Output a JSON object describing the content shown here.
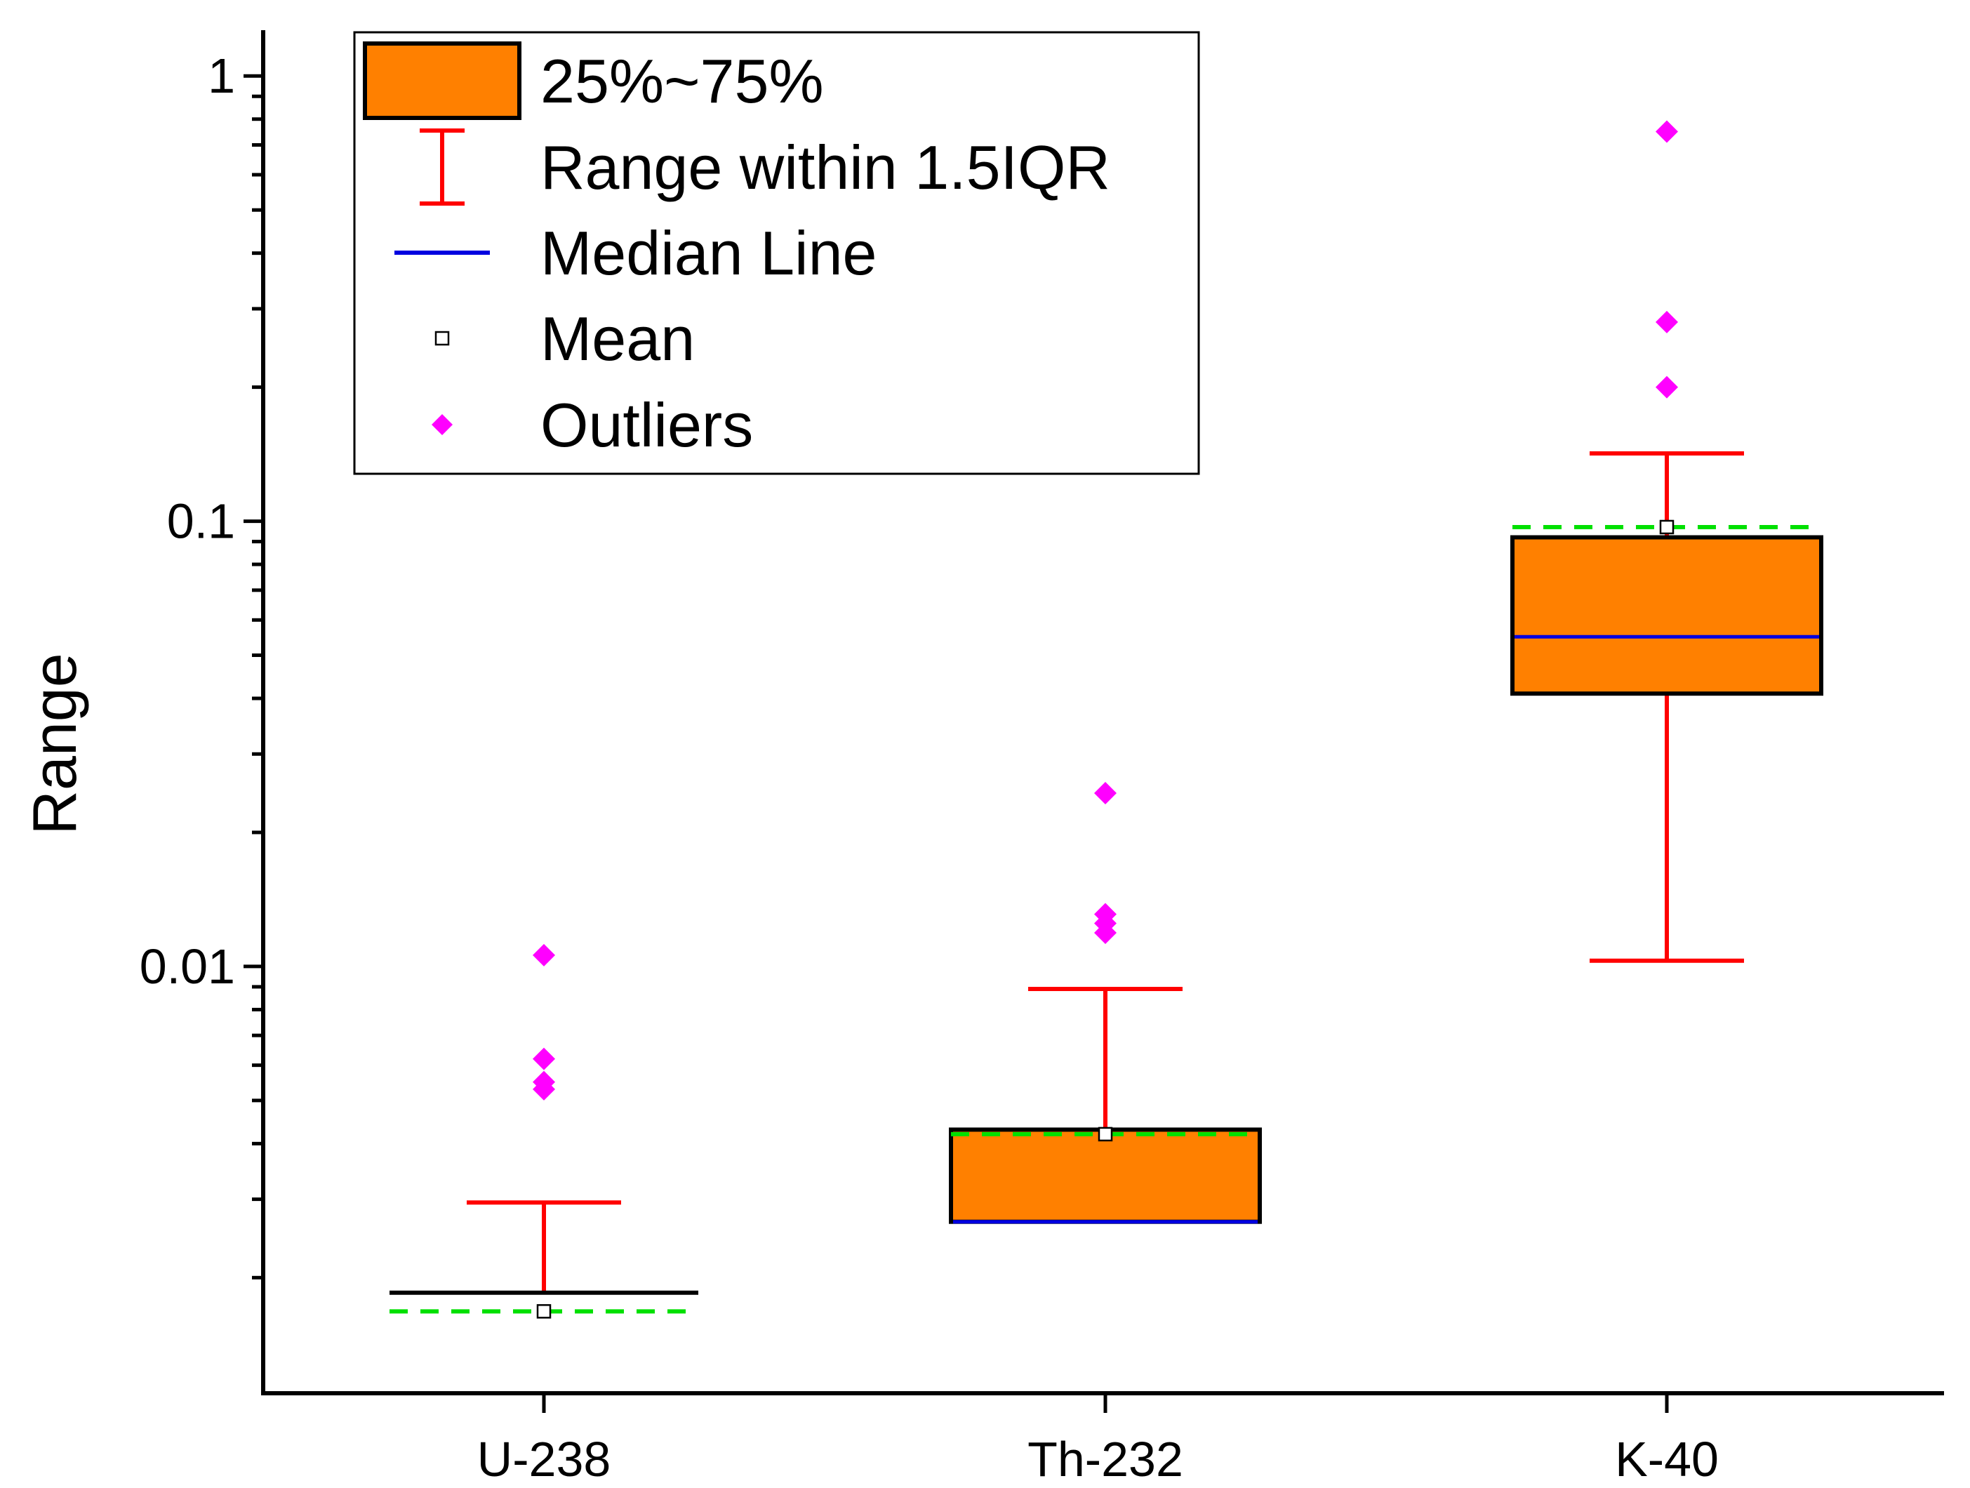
{
  "chart_data": {
    "type": "box",
    "title": "",
    "xlabel": "",
    "ylabel": "Range",
    "yscale": "log",
    "ylim": [
      0.0011,
      1.2
    ],
    "yticks": [
      {
        "value": 0.01,
        "label": "0.01"
      },
      {
        "value": 0.1,
        "label": "0.1"
      },
      {
        "value": 1,
        "label": "1"
      }
    ],
    "categories": [
      "U-238",
      "Th-232",
      "K-40"
    ],
    "boxes": [
      {
        "name": "U-238",
        "whisker_low": 0.00185,
        "q1": 0.00185,
        "median": 0.00185,
        "q3": 0.00185,
        "whisker_high": 0.00295,
        "mean": 0.00168,
        "reference": 0.00168,
        "outliers": [
          0.0106,
          0.0062,
          0.0055,
          0.0053
        ]
      },
      {
        "name": "Th-232",
        "whisker_low": 0.00267,
        "q1": 0.00267,
        "median": 0.00267,
        "q3": 0.0043,
        "whisker_high": 0.0089,
        "mean": 0.0042,
        "reference": 0.0042,
        "outliers": [
          0.0245,
          0.0131,
          0.0125,
          0.0119
        ]
      },
      {
        "name": "K-40",
        "whisker_low": 0.0103,
        "q1": 0.041,
        "median": 0.055,
        "q3": 0.092,
        "whisker_high": 0.142,
        "mean": 0.097,
        "reference": 0.097,
        "outliers": [
          0.75,
          0.28,
          0.2
        ]
      }
    ],
    "legend": {
      "position": "top-left",
      "items": [
        {
          "key": "box",
          "label": "25%~75%"
        },
        {
          "key": "whisker",
          "label": "Range within 1.5IQR"
        },
        {
          "key": "median",
          "label": "Median Line"
        },
        {
          "key": "mean",
          "label": "Mean"
        },
        {
          "key": "outlier",
          "label": "Outliers"
        }
      ]
    },
    "colors": {
      "box_fill": "#ff8000",
      "box_edge": "#000000",
      "whisker": "#ff0000",
      "median": "#0000e0",
      "reference": "#00e000",
      "outlier": "#ff00ff",
      "mean_edge": "#000000",
      "axis": "#000000"
    }
  }
}
